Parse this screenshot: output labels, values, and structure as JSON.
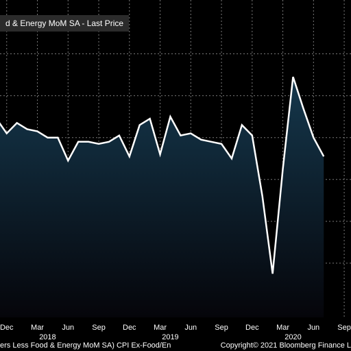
{
  "legend": "d & Energy MoM SA - Last Price",
  "footer": {
    "left": "ers Less Food & Energy MoM SA) CPI Ex-Food/En",
    "right": "Copyright© 2021 Bloomberg Finance L"
  },
  "colors": {
    "background": "#000000",
    "line": "#ffffff",
    "fill_top": "#15384d",
    "fill_bottom": "#05050a",
    "grid": "#7a7a7a"
  },
  "chart_data": {
    "type": "area",
    "title": "",
    "xlabel": "",
    "ylabel": "",
    "grid": true,
    "x_ticks": [
      "Dec",
      "Mar",
      "Jun",
      "Sep",
      "Dec",
      "Mar",
      "Jun",
      "Sep",
      "Dec",
      "Mar",
      "Jun",
      "Sep"
    ],
    "x_tick_index": [
      3,
      6,
      9,
      12,
      15,
      18,
      21,
      24,
      27,
      30,
      33,
      36
    ],
    "year_labels": [
      {
        "label": "2018",
        "index": 7
      },
      {
        "label": "2019",
        "index": 19
      },
      {
        "label": "2020",
        "index": 31
      }
    ],
    "y_range": [
      -0.6,
      0.7
    ],
    "y_grid": [
      0.6,
      0.4,
      0.2,
      0.0,
      -0.2,
      -0.4
    ],
    "x_range": [
      0,
      37
    ],
    "values": [
      0.1,
      0.24,
      0.29,
      0.22,
      0.27,
      0.24,
      0.23,
      0.2,
      0.2,
      0.09,
      0.18,
      0.18,
      0.17,
      0.18,
      0.21,
      0.11,
      0.26,
      0.29,
      0.12,
      0.3,
      0.21,
      0.22,
      0.19,
      0.18,
      0.17,
      0.1,
      0.26,
      0.21,
      -0.08,
      -0.45,
      0.05,
      0.49,
      0.34,
      0.2,
      0.11
    ]
  }
}
